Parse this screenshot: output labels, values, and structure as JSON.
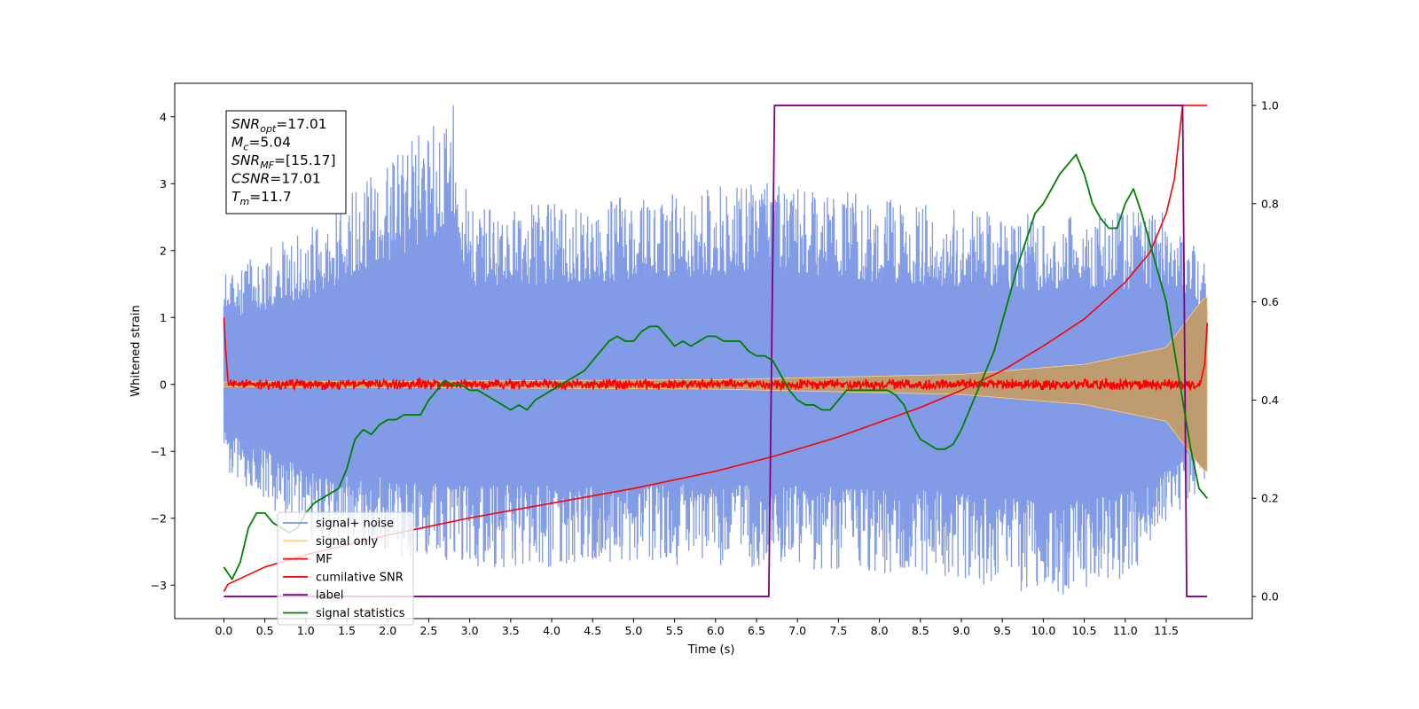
{
  "chart_data": {
    "type": "line",
    "xlabel": "Time (s)",
    "ylabel": "Whitened strain",
    "y2label": "",
    "xlim": [
      -0.6,
      12.55
    ],
    "ylim": [
      -3.5,
      4.5
    ],
    "y2lim": [
      -0.045,
      1.045
    ],
    "xticks": [
      "0.0",
      "0.5",
      "1.0",
      "1.5",
      "2.0",
      "2.5",
      "3.0",
      "3.5",
      "4.0",
      "4.5",
      "5.0",
      "5.5",
      "6.0",
      "6.5",
      "7.0",
      "7.5",
      "8.0",
      "8.5",
      "9.0",
      "9.5",
      "10.0",
      "10.5",
      "11.0",
      "11.5"
    ],
    "yticks": [
      "−3",
      "−2",
      "−1",
      "0",
      "1",
      "2",
      "3",
      "4"
    ],
    "y2ticks": [
      "0.0",
      "0.2",
      "0.4",
      "0.6",
      "0.8",
      "1.0"
    ],
    "grid": false,
    "legend_position": "lower-left",
    "annotation": [
      {
        "sym": "SNR",
        "sub": "opt",
        "rest": "=17.01"
      },
      {
        "sym": "M",
        "sub": "c",
        "rest": "=5.04"
      },
      {
        "sym": "SNR",
        "sub": "MF",
        "rest": "=[15.17]"
      },
      {
        "sym": "CSNR",
        "sub": "",
        "rest": "=17.01"
      },
      {
        "sym": "T",
        "sub": "m",
        "rest": "=11.7"
      }
    ],
    "series": [
      {
        "name": "signal+ noise",
        "axis": "left",
        "color": "#7a96e6",
        "duration": 12.0,
        "envelope_upper": [
          [
            0.0,
            1.75
          ],
          [
            1.0,
            2.3
          ],
          [
            2.8,
            4.17
          ],
          [
            3.0,
            2.6
          ],
          [
            6.7,
            3.05
          ],
          [
            9.0,
            2.6
          ],
          [
            10.0,
            2.55
          ],
          [
            11.5,
            2.6
          ],
          [
            12.0,
            1.9
          ]
        ],
        "envelope_lower": [
          [
            0.0,
            -1.25
          ],
          [
            1.0,
            -2.3
          ],
          [
            2.8,
            -2.75
          ],
          [
            6.0,
            -2.7
          ],
          [
            8.5,
            -2.85
          ],
          [
            10.2,
            -3.2
          ],
          [
            11.0,
            -2.95
          ],
          [
            12.0,
            -1.45
          ]
        ]
      },
      {
        "name": "signal only",
        "axis": "left",
        "color": "#ffd280",
        "fill_color": "#bf9c70",
        "duration": 12.0,
        "amplitude": [
          [
            0.0,
            0.035
          ],
          [
            6.0,
            0.07
          ],
          [
            9.0,
            0.15
          ],
          [
            10.5,
            0.3
          ],
          [
            11.5,
            0.55
          ],
          [
            11.9,
            1.2
          ],
          [
            11.98,
            1.3
          ]
        ]
      },
      {
        "name": "MF",
        "axis": "left",
        "color": "#ff0000",
        "duration": 12.0,
        "center": 0.0,
        "noise_amplitude": 0.09,
        "start_value": 1.0,
        "end_value": 0.92
      },
      {
        "name": "cumilative SNR",
        "axis": "right",
        "color": "#ff0000",
        "x": [
          0.0,
          0.05,
          0.5,
          1.0,
          2.0,
          3.0,
          4.0,
          5.0,
          6.0,
          6.7,
          7.0,
          7.5,
          8.0,
          8.5,
          9.0,
          9.5,
          10.0,
          10.5,
          11.0,
          11.3,
          11.5,
          11.6,
          11.7,
          12.0
        ],
        "values": [
          0.01,
          0.025,
          0.06,
          0.085,
          0.125,
          0.16,
          0.19,
          0.22,
          0.255,
          0.285,
          0.3,
          0.325,
          0.355,
          0.385,
          0.42,
          0.46,
          0.51,
          0.565,
          0.64,
          0.7,
          0.78,
          0.85,
          1.0,
          1.0
        ]
      },
      {
        "name": "label",
        "axis": "right",
        "color": "#800080",
        "x": [
          0.0,
          6.65,
          6.72,
          11.7,
          11.75,
          12.0
        ],
        "values": [
          0.0,
          0.0,
          1.0,
          1.0,
          0.0,
          0.0
        ]
      },
      {
        "name": "signal statistics",
        "axis": "right",
        "color": "#008000",
        "x": [
          0.0,
          0.1,
          0.2,
          0.3,
          0.4,
          0.5,
          0.6,
          0.7,
          0.8,
          0.9,
          1.0,
          1.1,
          1.2,
          1.3,
          1.4,
          1.5,
          1.6,
          1.7,
          1.8,
          1.9,
          2.0,
          2.1,
          2.2,
          2.3,
          2.4,
          2.5,
          2.6,
          2.7,
          2.8,
          2.9,
          3.0,
          3.1,
          3.2,
          3.3,
          3.4,
          3.5,
          3.6,
          3.7,
          3.8,
          3.9,
          4.0,
          4.1,
          4.2,
          4.3,
          4.4,
          4.5,
          4.6,
          4.7,
          4.8,
          4.9,
          5.0,
          5.1,
          5.2,
          5.3,
          5.4,
          5.5,
          5.6,
          5.7,
          5.8,
          5.9,
          6.0,
          6.1,
          6.2,
          6.3,
          6.4,
          6.5,
          6.6,
          6.7,
          6.8,
          6.9,
          7.0,
          7.1,
          7.2,
          7.3,
          7.4,
          7.5,
          7.6,
          7.7,
          7.8,
          7.9,
          8.0,
          8.1,
          8.2,
          8.3,
          8.4,
          8.5,
          8.6,
          8.7,
          8.8,
          8.9,
          9.0,
          9.1,
          9.2,
          9.3,
          9.4,
          9.5,
          9.6,
          9.7,
          9.8,
          9.9,
          10.0,
          10.1,
          10.2,
          10.3,
          10.4,
          10.5,
          10.6,
          10.7,
          10.8,
          10.9,
          11.0,
          11.1,
          11.2,
          11.3,
          11.4,
          11.5,
          11.6,
          11.7,
          11.8,
          11.9,
          12.0
        ],
        "values": [
          0.06,
          0.035,
          0.07,
          0.14,
          0.17,
          0.17,
          0.15,
          0.14,
          0.13,
          0.14,
          0.17,
          0.19,
          0.2,
          0.21,
          0.22,
          0.26,
          0.32,
          0.34,
          0.33,
          0.35,
          0.36,
          0.36,
          0.37,
          0.37,
          0.37,
          0.4,
          0.42,
          0.44,
          0.43,
          0.43,
          0.42,
          0.42,
          0.41,
          0.4,
          0.39,
          0.38,
          0.39,
          0.38,
          0.4,
          0.41,
          0.42,
          0.43,
          0.44,
          0.45,
          0.46,
          0.48,
          0.5,
          0.52,
          0.53,
          0.52,
          0.52,
          0.54,
          0.55,
          0.55,
          0.53,
          0.51,
          0.52,
          0.51,
          0.52,
          0.53,
          0.53,
          0.52,
          0.52,
          0.52,
          0.5,
          0.49,
          0.49,
          0.48,
          0.45,
          0.42,
          0.4,
          0.39,
          0.39,
          0.38,
          0.38,
          0.4,
          0.42,
          0.42,
          0.42,
          0.42,
          0.42,
          0.42,
          0.41,
          0.39,
          0.35,
          0.32,
          0.31,
          0.3,
          0.3,
          0.31,
          0.34,
          0.38,
          0.42,
          0.46,
          0.5,
          0.56,
          0.62,
          0.68,
          0.73,
          0.78,
          0.8,
          0.83,
          0.86,
          0.88,
          0.9,
          0.86,
          0.8,
          0.77,
          0.75,
          0.75,
          0.8,
          0.83,
          0.78,
          0.72,
          0.66,
          0.6,
          0.5,
          0.4,
          0.3,
          0.22,
          0.2
        ]
      }
    ]
  }
}
